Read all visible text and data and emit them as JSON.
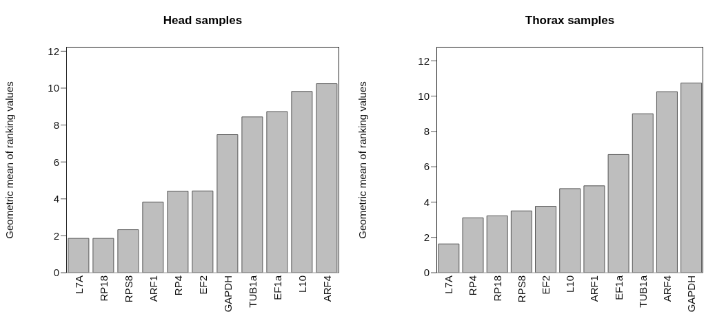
{
  "chart_data": [
    {
      "type": "bar",
      "title": "Head samples",
      "ylabel": "Geometric mean of ranking values",
      "categories": [
        "L7A",
        "RP18",
        "RPS8",
        "ARF1",
        "RP4",
        "EF2",
        "GAPDH",
        "TUB1a",
        "EF1a",
        "L10",
        "ARF4"
      ],
      "values": [
        1.86,
        1.86,
        2.33,
        3.83,
        4.42,
        4.43,
        7.48,
        8.44,
        8.73,
        9.82,
        10.24
      ],
      "color": "#bebebe",
      "ylim": [
        0,
        12.2
      ],
      "yticks": [
        0,
        2,
        4,
        6,
        8,
        10,
        12
      ]
    },
    {
      "type": "bar",
      "title": "Thorax samples",
      "ylabel": "Geometric mean of ranking values",
      "categories": [
        "L7A",
        "RP4",
        "RP18",
        "RPS8",
        "EF2",
        "L10",
        "ARF1",
        "EF1a",
        "TUB1a",
        "ARF4",
        "GAPDH"
      ],
      "values": [
        1.63,
        3.11,
        3.22,
        3.5,
        3.76,
        4.76,
        4.92,
        6.69,
        9.0,
        10.25,
        10.74
      ],
      "color": "#bebebe",
      "ylim": [
        0,
        12.75
      ],
      "yticks": [
        0,
        2,
        4,
        6,
        8,
        10,
        12
      ]
    }
  ]
}
